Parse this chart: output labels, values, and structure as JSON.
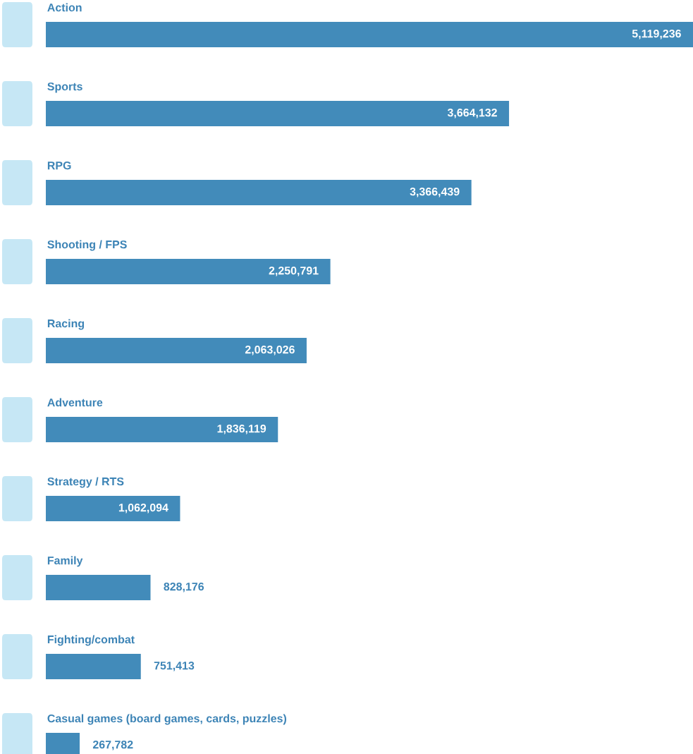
{
  "chart_data": {
    "type": "bar",
    "orientation": "horizontal",
    "categories": [
      "Action",
      "Sports",
      "RPG",
      "Shooting / FPS",
      "Racing",
      "Adventure",
      "Strategy / RTS",
      "Family",
      "Fighting/combat",
      "Casual games (board games, cards, puzzles)"
    ],
    "values": [
      5119236,
      3664132,
      3366439,
      2250791,
      2063026,
      1836119,
      1062094,
      828176,
      751413,
      267782
    ],
    "value_labels": [
      "5,119,236",
      "3,664,132",
      "3,366,439",
      "2,250,791",
      "2,063,026",
      "1,836,119",
      "1,062,094",
      "828,176",
      "751,413",
      "267,782"
    ],
    "color": "#428bba"
  }
}
